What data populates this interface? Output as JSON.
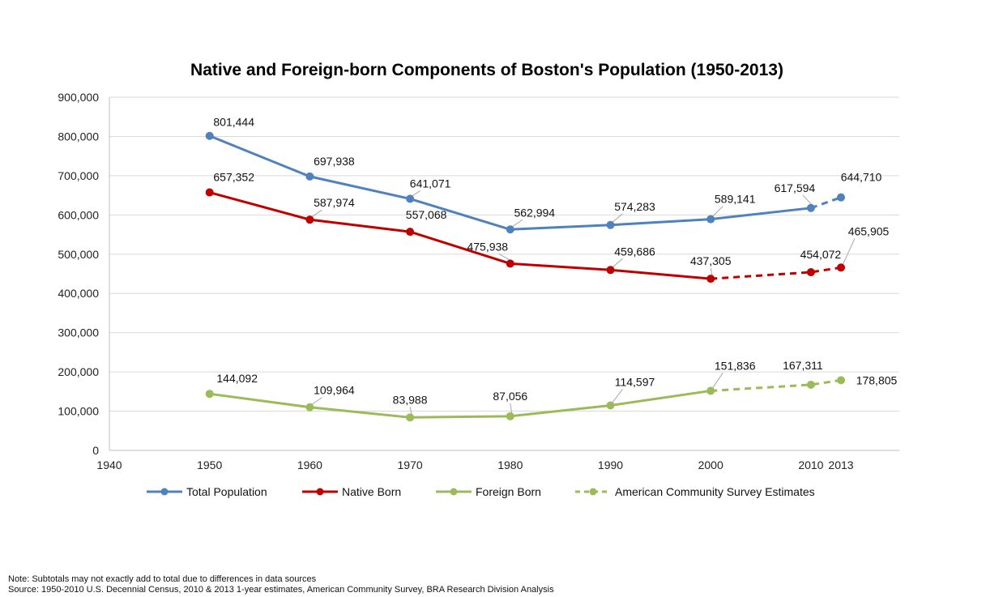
{
  "chart_data": {
    "type": "line",
    "title": "Native and Foreign-born Components of Boston's Population (1950-2013)",
    "xlabel": "",
    "ylabel": "",
    "xlim": [
      1940,
      2022
    ],
    "ylim": [
      0,
      900000
    ],
    "x_ticks": [
      1940,
      1950,
      1960,
      1970,
      1980,
      1990,
      2000,
      2010,
      2013
    ],
    "y_ticks": [
      0,
      100000,
      200000,
      300000,
      400000,
      500000,
      600000,
      700000,
      800000,
      900000
    ],
    "y_tick_labels": [
      "0",
      "100,000",
      "200,000",
      "300,000",
      "400,000",
      "500,000",
      "600,000",
      "700,000",
      "800,000",
      "900,000"
    ],
    "grid": true,
    "legend_position": "bottom",
    "x": [
      1950,
      1960,
      1970,
      1980,
      1990,
      2000,
      2010,
      2013
    ],
    "series": [
      {
        "name": "Total Population",
        "color": "#4f81bd",
        "values": [
          801444,
          697938,
          641071,
          562994,
          574283,
          589141,
          617594,
          644710
        ],
        "labels": [
          "801,444",
          "697,938",
          "641,071",
          "562,994",
          "574,283",
          "589,141",
          "617,594",
          "644,710"
        ],
        "estimate_from_index": 6
      },
      {
        "name": "Native Born",
        "color": "#c00000",
        "values": [
          657352,
          587974,
          557068,
          475938,
          459686,
          437305,
          454072,
          465905
        ],
        "labels": [
          "657,352",
          "587,974",
          "557,068",
          "475,938",
          "459,686",
          "437,305",
          "454,072",
          "465,905"
        ],
        "estimate_from_index": 5
      },
      {
        "name": "Foreign Born",
        "color": "#9bbb59",
        "values": [
          144092,
          109964,
          83988,
          87056,
          114597,
          151836,
          167311,
          178805
        ],
        "labels": [
          "144,092",
          "109,964",
          "83,988",
          "87,056",
          "114,597",
          "151,836",
          "167,311",
          "178,805"
        ],
        "estimate_from_index": 5
      }
    ],
    "legend": [
      {
        "name": "Total Population",
        "color": "#4f81bd",
        "style": "solid"
      },
      {
        "name": "Native Born",
        "color": "#c00000",
        "style": "solid"
      },
      {
        "name": "Foreign Born",
        "color": "#9bbb59",
        "style": "solid"
      },
      {
        "name": "American Community Survey Estimates",
        "color": "#9bbb59",
        "style": "dashed"
      }
    ]
  },
  "notes": {
    "note": "Note: Subtotals may not exactly add to total due to differences in data sources",
    "source": "Source: 1950-2010 U.S. Decennial Census, 2010 & 2013 1-year estimates, American Community Survey, BRA Research Division Analysis"
  }
}
